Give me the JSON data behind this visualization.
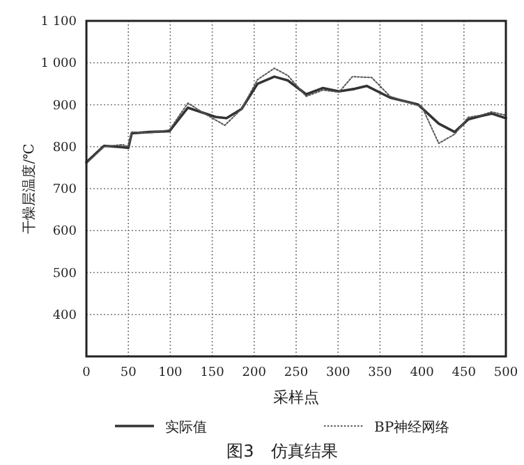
{
  "chart_data": {
    "type": "line",
    "title": "图3　仿真结果",
    "xlabel": "采样点",
    "ylabel": "干燥层温度/℃",
    "xlim": [
      0,
      500
    ],
    "xticks": [
      0,
      50,
      100,
      150,
      200,
      250,
      300,
      350,
      400,
      450,
      500
    ],
    "ylim": [
      300,
      1100
    ],
    "yticks": [
      {
        "value": 300,
        "label": null
      },
      400,
      500,
      600,
      700,
      800,
      900,
      {
        "value": 1000,
        "label": "1 000"
      },
      {
        "value": 1100,
        "label": "1 100"
      }
    ],
    "grid": true,
    "legend": "bottom",
    "marker": "none",
    "series": [
      {
        "name": "实际值",
        "color": "#333333",
        "line_style": "solid",
        "x": [
          0,
          21,
          43,
          50,
          54,
          75,
          99,
          121,
          154,
          167,
          185,
          204,
          224,
          240,
          262,
          282,
          301,
          320,
          334,
          362,
          395,
          420,
          439,
          455,
          470,
          483,
          500
        ],
        "values": [
          763,
          802,
          799,
          797,
          832,
          835,
          837,
          893,
          871,
          868,
          890,
          950,
          967,
          958,
          925,
          940,
          932,
          938,
          945,
          917,
          901,
          855,
          835,
          865,
          873,
          879,
          868
        ]
      },
      {
        "name": "BP神经网络",
        "color": "#555555",
        "line_style": "dotted",
        "x": [
          0,
          21,
          43,
          50,
          54,
          75,
          99,
          121,
          140,
          165,
          185,
          204,
          224,
          240,
          262,
          282,
          301,
          317,
          340,
          362,
          400,
          420,
          439,
          455,
          470,
          483,
          500
        ],
        "values": [
          760,
          800,
          805,
          800,
          835,
          833,
          840,
          904,
          880,
          851,
          890,
          960,
          987,
          970,
          920,
          935,
          930,
          967,
          965,
          920,
          895,
          808,
          830,
          870,
          875,
          883,
          875
        ]
      }
    ]
  }
}
